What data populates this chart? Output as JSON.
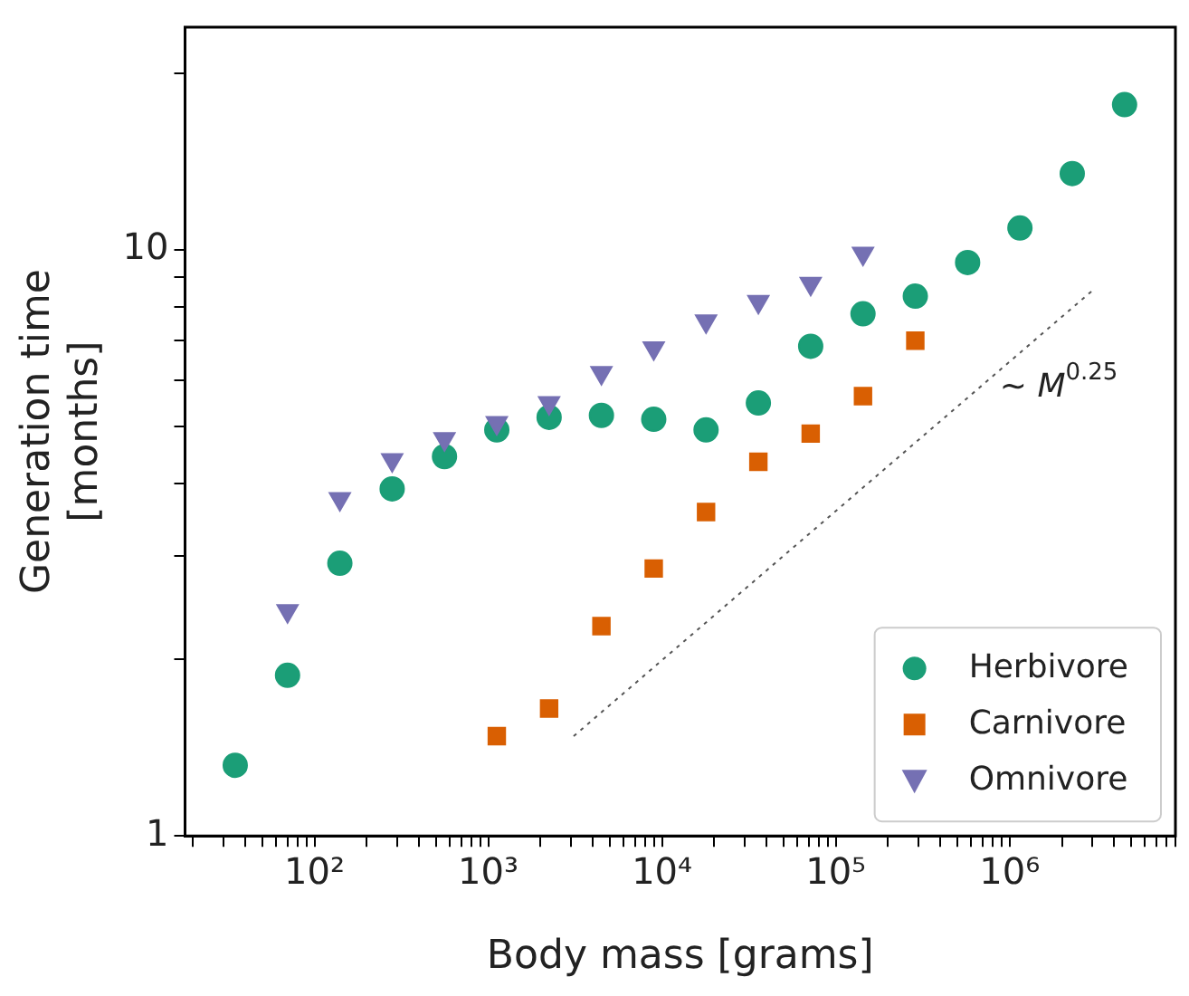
{
  "chart_data": {
    "type": "scatter",
    "xlabel": "Body mass [grams]",
    "ylabel": "Generation time\n[months]",
    "log": "xy",
    "grid": false,
    "legend": "bottom right",
    "xlim": [
      18,
      9000000
    ],
    "ylim": [
      1,
      24
    ],
    "xticks": [
      {
        "value": 20,
        "label": null
      },
      {
        "value": 30,
        "label": null
      },
      {
        "value": 40,
        "label": null
      },
      {
        "value": 50,
        "label": null
      },
      {
        "value": 60,
        "label": null
      },
      {
        "value": 70,
        "label": null
      },
      {
        "value": 80,
        "label": null
      },
      {
        "value": 90,
        "label": null
      },
      {
        "value": 100,
        "label": "10²"
      },
      {
        "value": 200,
        "label": null
      },
      {
        "value": 300,
        "label": null
      },
      {
        "value": 400,
        "label": null
      },
      {
        "value": 500,
        "label": null
      },
      {
        "value": 600,
        "label": null
      },
      {
        "value": 700,
        "label": null
      },
      {
        "value": 800,
        "label": null
      },
      {
        "value": 900,
        "label": null
      },
      {
        "value": 1000,
        "label": "10³"
      },
      {
        "value": 2000,
        "label": null
      },
      {
        "value": 3000,
        "label": null
      },
      {
        "value": 4000,
        "label": null
      },
      {
        "value": 5000,
        "label": null
      },
      {
        "value": 6000,
        "label": null
      },
      {
        "value": 7000,
        "label": null
      },
      {
        "value": 8000,
        "label": null
      },
      {
        "value": 9000,
        "label": null
      },
      {
        "value": 10000,
        "label": "10⁴"
      },
      {
        "value": 20000,
        "label": null
      },
      {
        "value": 30000,
        "label": null
      },
      {
        "value": 40000,
        "label": null
      },
      {
        "value": 50000,
        "label": null
      },
      {
        "value": 60000,
        "label": null
      },
      {
        "value": 70000,
        "label": null
      },
      {
        "value": 80000,
        "label": null
      },
      {
        "value": 90000,
        "label": null
      },
      {
        "value": 100000,
        "label": "10⁵"
      },
      {
        "value": 200000,
        "label": null
      },
      {
        "value": 300000,
        "label": null
      },
      {
        "value": 400000,
        "label": null
      },
      {
        "value": 500000,
        "label": null
      },
      {
        "value": 600000,
        "label": null
      },
      {
        "value": 700000,
        "label": null
      },
      {
        "value": 800000,
        "label": null
      },
      {
        "value": 900000,
        "label": null
      },
      {
        "value": 1000000,
        "label": "10⁶"
      },
      {
        "value": 2000000,
        "label": null
      },
      {
        "value": 3000000,
        "label": null
      },
      {
        "value": 4000000,
        "label": null
      },
      {
        "value": 5000000,
        "label": null
      },
      {
        "value": 6000000,
        "label": null
      },
      {
        "value": 7000000,
        "label": null
      },
      {
        "value": 8000000,
        "label": null
      },
      {
        "value": 9000000,
        "label": null
      }
    ],
    "yticks": [
      1,
      {
        "value": 2,
        "label": null
      },
      {
        "value": 3,
        "label": null
      },
      {
        "value": 4,
        "label": null
      },
      {
        "value": 5,
        "label": null
      },
      {
        "value": 6,
        "label": null
      },
      {
        "value": 7,
        "label": null
      },
      {
        "value": 8,
        "label": null
      },
      {
        "value": 9,
        "label": null
      },
      10,
      {
        "value": 20,
        "label": null
      }
    ],
    "series": [
      {
        "name": "Herbivore",
        "color": "#1b9e77",
        "marker": "circle",
        "x": [
          35,
          70,
          140,
          280,
          560,
          1120,
          2240,
          4480,
          8960,
          17920,
          35840,
          71680,
          143360,
          286720,
          573440,
          1146880,
          2293760,
          4587520
        ],
        "values": [
          1.32,
          1.88,
          2.92,
          3.91,
          4.44,
          4.93,
          5.18,
          5.22,
          5.14,
          4.93,
          5.48,
          6.85,
          7.78,
          8.34,
          9.52,
          10.9,
          13.5,
          17.7
        ]
      },
      {
        "name": "Carnivore",
        "color": "#d95f02",
        "marker": "square",
        "x": [
          1120,
          2240,
          4480,
          8960,
          17920,
          35840,
          71680,
          143360,
          286720
        ],
        "values": [
          1.48,
          1.65,
          2.28,
          2.86,
          3.57,
          4.35,
          4.86,
          5.63,
          7.0
        ]
      },
      {
        "name": "Omnivore",
        "color": "#7570b3",
        "marker": "triangle",
        "x": [
          70,
          140,
          280,
          560,
          1120,
          2240,
          4480,
          8960,
          17920,
          35840,
          71680,
          143360
        ],
        "values": [
          2.42,
          3.76,
          4.38,
          4.76,
          5.07,
          5.48,
          6.17,
          6.8,
          7.56,
          8.16,
          8.76,
          9.86
        ]
      },
      {
        "type": "line",
        "color": "#555555",
        "line_style": "dotted",
        "marker": "none",
        "x": [
          3100,
          3100000
        ],
        "values": [
          1.48,
          8.6
        ]
      }
    ],
    "annotations": [
      "∼ M$^{0.25}$"
    ]
  }
}
